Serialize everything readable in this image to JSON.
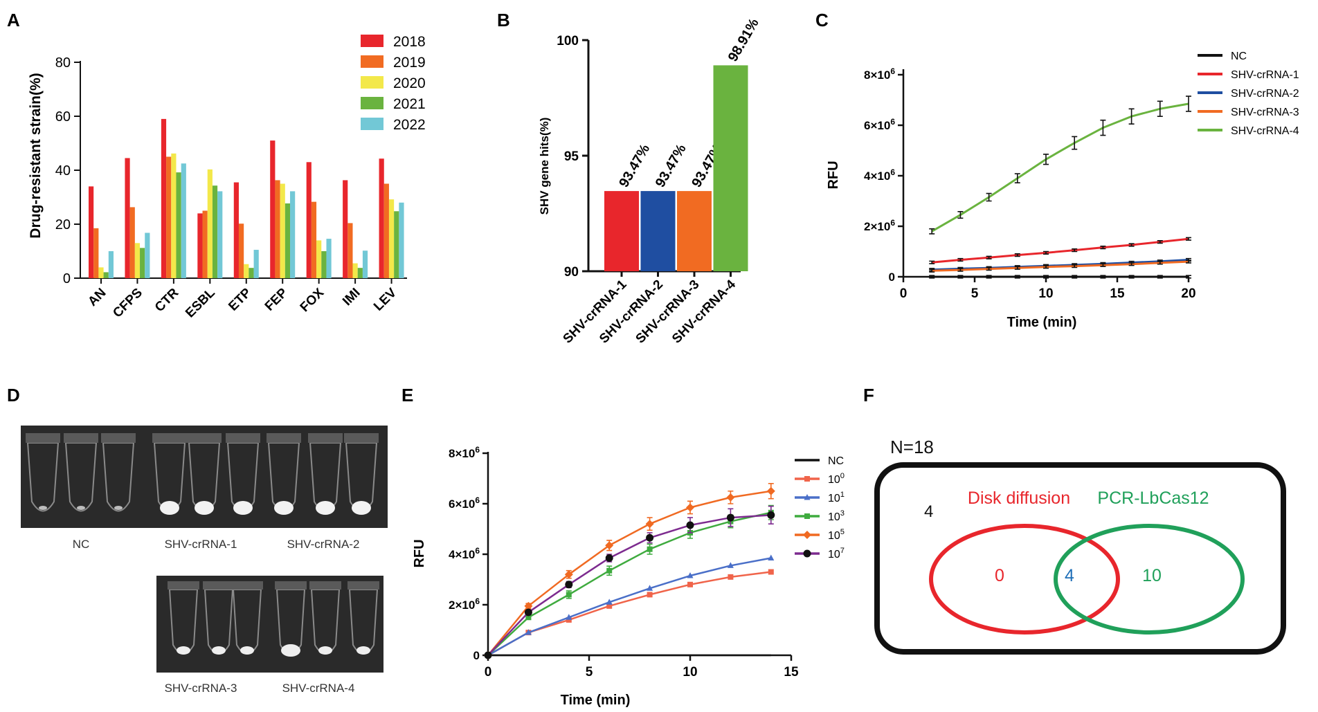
{
  "panel_labels": [
    "A",
    "B",
    "C",
    "D",
    "E",
    "F"
  ],
  "chart_data": [
    {
      "panel": "A",
      "type": "bar",
      "title": "",
      "xlabel": "",
      "ylabel": "Drug-resistant strain(%)",
      "ylim": [
        0,
        80
      ],
      "yticks": [
        0,
        20,
        40,
        60,
        80
      ],
      "categories": [
        "AN",
        "CFPS",
        "CTR",
        "ESBL",
        "ETP",
        "FEP",
        "FOX",
        "IMI",
        "LEV"
      ],
      "legend_position": "top-right",
      "series": [
        {
          "name": "2018",
          "color": "#e8262c",
          "values": [
            34,
            44.5,
            59,
            24,
            35.5,
            51,
            43,
            36.3,
            44.3
          ]
        },
        {
          "name": "2019",
          "color": "#f16b22",
          "values": [
            18.5,
            26.3,
            45,
            25,
            20.2,
            36.3,
            28.3,
            20.4,
            35
          ]
        },
        {
          "name": "2020",
          "color": "#f3e84a",
          "values": [
            4,
            13,
            46.2,
            40.3,
            5.2,
            35,
            14,
            5.5,
            29.2
          ]
        },
        {
          "name": "2021",
          "color": "#6ab33f",
          "values": [
            2.2,
            11.2,
            39.2,
            34.3,
            3.8,
            27.7,
            10,
            3.8,
            24.8
          ]
        },
        {
          "name": "2022",
          "color": "#72c8d6",
          "values": [
            10,
            16.8,
            42.5,
            32.2,
            10.5,
            32.2,
            14.6,
            10.2,
            28
          ]
        }
      ]
    },
    {
      "panel": "B",
      "type": "bar",
      "title": "",
      "xlabel": "",
      "ylabel": "SHV gene hits(%)",
      "ylim": [
        90,
        100
      ],
      "yticks": [
        90,
        95,
        100
      ],
      "categories": [
        "SHV-crRNA-1",
        "SHV-crRNA-2",
        "SHV-crRNA-3",
        "SHV-crRNA-4"
      ],
      "values": [
        93.47,
        93.47,
        93.47,
        98.91
      ],
      "data_labels": [
        "93.47%",
        "93.47%",
        "93.47%",
        "98.91%"
      ],
      "colors": [
        "#e8262c",
        "#1f4ea1",
        "#f16b22",
        "#6ab33f"
      ]
    },
    {
      "panel": "C",
      "type": "line",
      "title": "",
      "xlabel": "Time (min)",
      "ylabel": "RFU",
      "xlim": [
        0,
        20
      ],
      "xticks": [
        0,
        5,
        10,
        15,
        20
      ],
      "ylim": [
        0,
        8000000
      ],
      "yticks": [
        0,
        2000000,
        4000000,
        6000000,
        8000000
      ],
      "ytick_labels": [
        "0",
        "2×10⁶",
        "4×10⁶",
        "6×10⁶",
        "8×10⁶"
      ],
      "legend_position": "top-right",
      "x": [
        2,
        4,
        6,
        8,
        10,
        12,
        14,
        16,
        18,
        20
      ],
      "series": [
        {
          "name": "NC",
          "color": "#111111",
          "values": [
            0,
            0,
            0,
            0,
            0,
            0,
            0,
            0,
            0,
            0
          ]
        },
        {
          "name": "SHV-crRNA-1",
          "color": "#e8262c",
          "values": [
            570000,
            670000,
            760000,
            860000,
            950000,
            1050000,
            1160000,
            1260000,
            1380000,
            1500000
          ]
        },
        {
          "name": "SHV-crRNA-2",
          "color": "#1f4ea1",
          "values": [
            280000,
            320000,
            350000,
            390000,
            430000,
            470000,
            510000,
            560000,
            610000,
            670000
          ]
        },
        {
          "name": "SHV-crRNA-3",
          "color": "#f16b22",
          "values": [
            240000,
            270000,
            310000,
            350000,
            390000,
            420000,
            460000,
            500000,
            550000,
            600000
          ]
        },
        {
          "name": "SHV-crRNA-4",
          "color": "#6ab33f",
          "values": [
            1800000,
            2450000,
            3150000,
            3900000,
            4650000,
            5300000,
            5900000,
            6350000,
            6650000,
            6850000
          ],
          "errors": [
            100000,
            130000,
            150000,
            180000,
            200000,
            250000,
            300000,
            300000,
            300000,
            300000
          ]
        }
      ]
    },
    {
      "panel": "E",
      "type": "line",
      "title": "",
      "xlabel": "Time (min)",
      "ylabel": "RFU",
      "xlim": [
        0,
        15
      ],
      "xticks": [
        0,
        5,
        10,
        15
      ],
      "ylim": [
        0,
        8000000
      ],
      "yticks": [
        0,
        2000000,
        4000000,
        6000000,
        8000000
      ],
      "ytick_labels": [
        "0",
        "2×10⁶",
        "4×10⁶",
        "6×10⁶",
        "8×10⁶"
      ],
      "legend_position": "right",
      "x": [
        0,
        2,
        4,
        6,
        8,
        10,
        12,
        14
      ],
      "series": [
        {
          "name": "NC",
          "base": "NC",
          "exp": "",
          "color": "#111111",
          "marker": "none",
          "values": [
            0,
            0,
            0,
            0,
            0,
            0,
            0,
            0
          ]
        },
        {
          "name": "10^0",
          "base": "10",
          "exp": "0",
          "color": "#f0644a",
          "marker": "square",
          "values": [
            0,
            900000,
            1400000,
            1950000,
            2400000,
            2800000,
            3100000,
            3300000
          ]
        },
        {
          "name": "10^1",
          "base": "10",
          "exp": "1",
          "color": "#4a6fc8",
          "marker": "triangle",
          "values": [
            0,
            900000,
            1500000,
            2100000,
            2650000,
            3150000,
            3550000,
            3850000
          ]
        },
        {
          "name": "10^3",
          "base": "10",
          "exp": "3",
          "color": "#3fab3f",
          "marker": "square",
          "values": [
            0,
            1500000,
            2400000,
            3350000,
            4200000,
            4850000,
            5300000,
            5650000
          ],
          "errors": [
            0,
            80000,
            150000,
            180000,
            200000,
            220000,
            250000,
            280000
          ]
        },
        {
          "name": "10^5",
          "base": "10",
          "exp": "5",
          "color": "#f06a22",
          "marker": "diamond",
          "values": [
            0,
            1950000,
            3200000,
            4350000,
            5200000,
            5850000,
            6250000,
            6500000
          ],
          "errors": [
            0,
            100000,
            150000,
            200000,
            250000,
            250000,
            250000,
            300000
          ]
        },
        {
          "name": "10^7",
          "base": "10",
          "exp": "7",
          "color": "#7d2b8f",
          "marker": "circle",
          "values": [
            0,
            1700000,
            2800000,
            3850000,
            4650000,
            5150000,
            5450000,
            5550000
          ],
          "errors": [
            0,
            80000,
            120000,
            150000,
            200000,
            300000,
            350000,
            350000
          ]
        }
      ]
    }
  ],
  "panel_d": {
    "labels_top": [
      "NC",
      "SHV-crRNA-1",
      "SHV-crRNA-2"
    ],
    "labels_bottom": [
      "SHV-crRNA-3",
      "SHV-crRNA-4"
    ]
  },
  "panel_f": {
    "n_label": "N=18",
    "outside_count": "4",
    "left_label": "Disk diffusion",
    "right_label": "PCR-LbCas12",
    "left_only": "0",
    "overlap": "4",
    "right_only": "10",
    "left_color": "#e8262c",
    "right_color": "#20a05a",
    "overlap_color": "#1f6fb8"
  }
}
